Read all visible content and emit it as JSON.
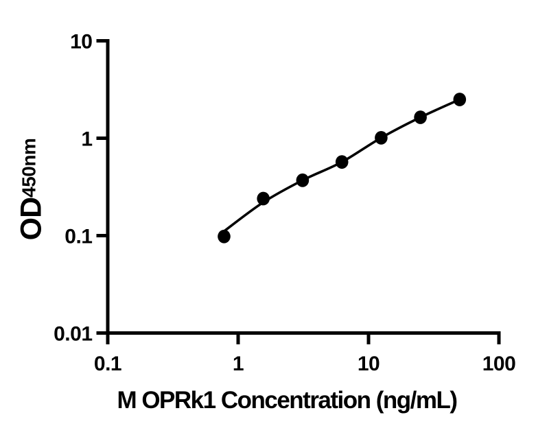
{
  "figure": {
    "background_color": "#ffffff",
    "foreground_color": "#000000"
  },
  "chart_data": {
    "type": "scatter",
    "title": "",
    "xlabel": "M OPRk1 Concentration (ng/mL)",
    "ylabel_main": "OD",
    "ylabel_sub": "450nm",
    "x_scale": "log10",
    "y_scale": "log10",
    "xlim": [
      0.1,
      100
    ],
    "ylim": [
      0.01,
      10
    ],
    "x_ticks": [
      0.1,
      1,
      10,
      100
    ],
    "x_tick_labels": [
      "0.1",
      "1",
      "10",
      "100"
    ],
    "y_ticks": [
      10,
      1,
      0.1,
      0.01
    ],
    "y_tick_labels": [
      "10",
      "1",
      "0.1",
      "0.01"
    ],
    "grid": false,
    "legend": null,
    "marker_color": "#000000",
    "line_color": "#000000",
    "points": [
      {
        "conc_ng_ml": 0.78,
        "od": 0.098
      },
      {
        "conc_ng_ml": 1.56,
        "od": 0.24
      },
      {
        "conc_ng_ml": 3.12,
        "od": 0.37
      },
      {
        "conc_ng_ml": 6.25,
        "od": 0.57
      },
      {
        "conc_ng_ml": 12.5,
        "od": 1.01
      },
      {
        "conc_ng_ml": 25,
        "od": 1.64
      },
      {
        "conc_ng_ml": 50,
        "od": 2.5
      }
    ],
    "trend_line": {
      "style": "smooth-fit",
      "x": [
        0.78,
        1.56,
        3.12,
        6.25,
        12.5,
        25,
        50
      ],
      "od": [
        0.111,
        0.22,
        0.37,
        0.57,
        1.01,
        1.64,
        2.5
      ]
    }
  }
}
